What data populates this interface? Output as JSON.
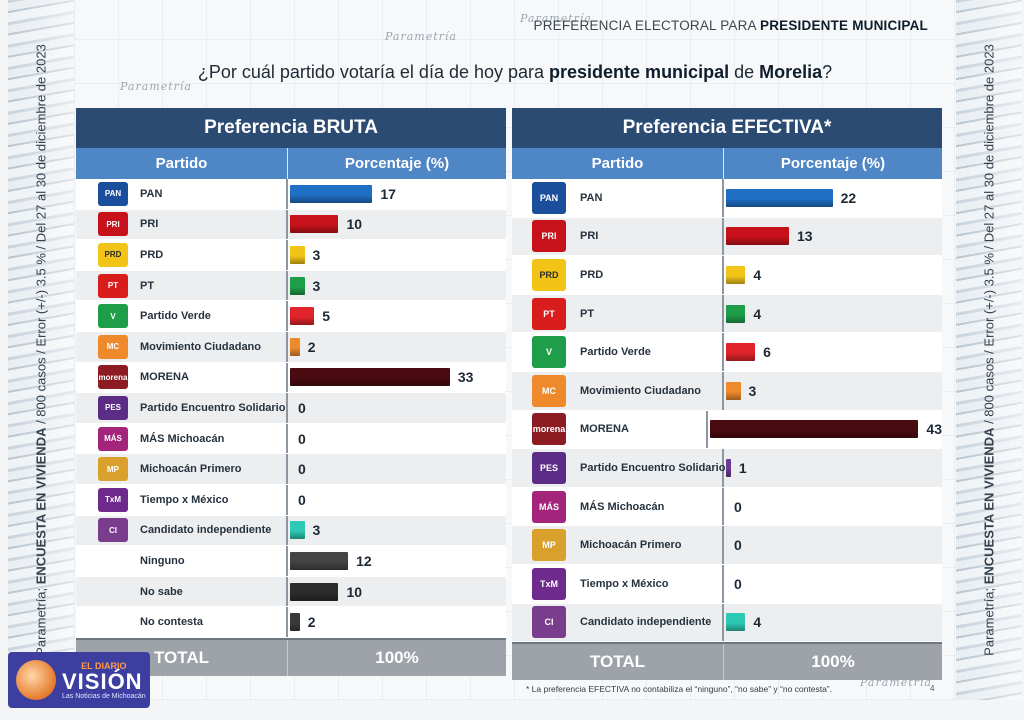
{
  "header": {
    "title_prefix": "PREFERENCIA ELECTORAL PARA ",
    "title_bold": "PRESIDENTE MUNICIPAL"
  },
  "question": {
    "part1": "¿Por cuál partido votaría el día de hoy para ",
    "bold1": "presidente municipal",
    "part2": " de ",
    "bold2": "Morelia",
    "part3": "?"
  },
  "side_text": {
    "prefix": "Parametría; ",
    "bold": "ENCUESTA EN VIVIENDA",
    "rest": " / 800 casos / Error (+/-) 3.5 % / Del 27 al 30 de diciembre de 2023"
  },
  "watermark": "Parametría",
  "chart_data": [
    {
      "type": "bar",
      "title": "Preferencia BRUTA",
      "col_party": "Partido",
      "col_pct": "Porcentaje (%)",
      "xlim": [
        0,
        45
      ],
      "categories": [
        "PAN",
        "PRI",
        "PRD",
        "PT",
        "Partido Verde",
        "Movimiento Ciudadano",
        "MORENA",
        "Partido Encuentro Solidario",
        "MÁS Michoacán",
        "Michoacán Primero",
        "Tiempo x México",
        "Candidato independiente",
        "Ninguno",
        "No sabe",
        "No contesta"
      ],
      "values": [
        17,
        10,
        3,
        3,
        5,
        2,
        33,
        0,
        0,
        0,
        0,
        3,
        12,
        10,
        2
      ],
      "logos": [
        "PAN",
        "PRI",
        "PRD",
        "PT",
        "V",
        "MC",
        "morena",
        "PES",
        "MÁS",
        "MP",
        "TxM",
        "CI",
        "",
        "",
        ""
      ],
      "total_label": "TOTAL",
      "total_value": "100%"
    },
    {
      "type": "bar",
      "title": "Preferencia EFECTIVA*",
      "col_party": "Partido",
      "col_pct": "Porcentaje (%)",
      "xlim": [
        0,
        45
      ],
      "categories": [
        "PAN",
        "PRI",
        "PRD",
        "PT",
        "Partido Verde",
        "Movimiento Ciudadano",
        "MORENA",
        "Partido Encuentro Solidario",
        "MÁS Michoacán",
        "Michoacán Primero",
        "Tiempo x México",
        "Candidato independiente"
      ],
      "values": [
        22,
        13,
        4,
        4,
        6,
        3,
        43,
        1,
        0,
        0,
        0,
        4
      ],
      "logos": [
        "PAN",
        "PRI",
        "PRD",
        "PT",
        "V",
        "MC",
        "morena",
        "PES",
        "MÁS",
        "MP",
        "TxM",
        "CI"
      ],
      "total_label": "TOTAL",
      "total_value": "100%"
    }
  ],
  "colors": {
    "PAN": "#1f6fc4",
    "PRI": "#c7121b",
    "PRD": "#f2c418",
    "PT": "#1f9e4a",
    "Partido Verde": "#e0242a",
    "Movimiento Ciudadano": "#ef8a2c",
    "MORENA": "#4a0b10",
    "Partido Encuentro Solidario": "#6a3b93",
    "MÁS Michoacán": "#a4247c",
    "Michoacán Primero": "#d9a12c",
    "Tiempo x México": "#6e2a8c",
    "Candidato independiente": "#2ec9b4",
    "Ninguno": "#444444",
    "No sabe": "#2c2c2c",
    "No contesta": "#3a3a3a"
  },
  "logo_colors": {
    "PAN": "#1b4f9c",
    "PRI": "#c7121b",
    "PRD": "#f2c418",
    "PT": "#d91c1c",
    "V": "#1f9e4a",
    "MC": "#ef8a2c",
    "morena": "#8c1b22",
    "PES": "#5b2d87",
    "MÁS": "#a4247c",
    "MP": "#d9a12c",
    "TxM": "#6e2a8c",
    "CI": "#7a3d8e"
  },
  "footnote": "* La preferencia EFECTIVA no contabiliza el “ninguno”, “no sabe” y “no contesta”.",
  "page_number": "4",
  "brand": {
    "line1": "EL DIARIO",
    "line2": "VISIÓN",
    "line3": "Las Noticias de Michoacán"
  }
}
